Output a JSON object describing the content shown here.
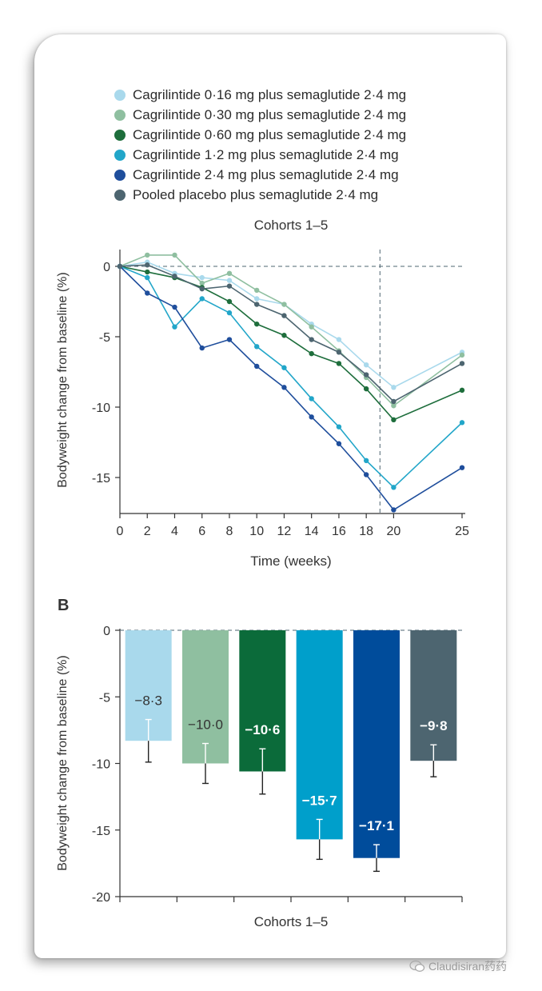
{
  "chart_data": [
    {
      "type": "line",
      "title": "Cohorts 1–5",
      "xlabel": "Time (weeks)",
      "ylabel": "Bodyweight change from baseline (%)",
      "x": [
        0,
        2,
        4,
        6,
        8,
        10,
        12,
        14,
        16,
        18,
        20,
        25
      ],
      "x_ticks": [
        "0",
        "2",
        "4",
        "6",
        "8",
        "10",
        "12",
        "14",
        "16",
        "18",
        "20",
        "25"
      ],
      "y_ticks": [
        "0",
        "-5",
        "-10",
        "-15"
      ],
      "ylim": [
        -17.5,
        1.3
      ],
      "reference_lines": {
        "y": 0,
        "x": 19
      },
      "legend_position": "top",
      "series": [
        {
          "name": "Cagrilintide 0·16 mg plus semaglutide 2·4 mg",
          "color": "#a9d9ec",
          "values": [
            0,
            0.3,
            -0.5,
            -0.8,
            -1.0,
            -2.3,
            -2.7,
            -4.1,
            -5.2,
            -7.0,
            -8.6,
            -6.1
          ]
        },
        {
          "name": "Cagrilintide 0·30 mg plus semaglutide 2·4 mg",
          "color": "#8fbfa0",
          "values": [
            0,
            0.8,
            0.8,
            -1.2,
            -0.5,
            -1.7,
            -2.7,
            -4.3,
            -6.0,
            -7.9,
            -9.9,
            -6.3
          ]
        },
        {
          "name": "Cagrilintide 0·60 mg plus semaglutide 2·4 mg",
          "color": "#1e6e3c",
          "values": [
            0,
            -0.4,
            -0.8,
            -1.5,
            -2.5,
            -4.1,
            -4.9,
            -6.2,
            -6.9,
            -8.7,
            -10.9,
            -8.8
          ]
        },
        {
          "name": "Cagrilintide 1·2 mg plus semaglutide 2·4 mg",
          "color": "#22a6c9",
          "values": [
            0,
            -0.8,
            -4.3,
            -2.3,
            -3.3,
            -5.7,
            -7.2,
            -9.4,
            -11.4,
            -13.8,
            -15.7,
            -11.1
          ]
        },
        {
          "name": "Cagrilintide 2·4 mg plus semaglutide 2·4 mg",
          "color": "#1f4e9c",
          "values": [
            0,
            -1.9,
            -2.9,
            -5.8,
            -5.2,
            -7.1,
            -8.6,
            -10.7,
            -12.6,
            -14.8,
            -17.3,
            -14.3
          ]
        },
        {
          "name": "Pooled placebo plus semaglutide 2·4 mg",
          "color": "#4d6570",
          "values": [
            0,
            0.1,
            -0.7,
            -1.6,
            -1.4,
            -2.7,
            -3.5,
            -5.2,
            -6.1,
            -7.7,
            -9.6,
            -6.9
          ]
        }
      ]
    },
    {
      "type": "bar",
      "panel_label": "B",
      "xlabel": "Cohorts 1–5",
      "ylabel": "Bodyweight change from baseline (%)",
      "y_ticks": [
        "0",
        "-5",
        "-10",
        "-15",
        "-20"
      ],
      "ylim": [
        -20,
        0
      ],
      "values": [
        -8.3,
        -10.0,
        -10.6,
        -15.7,
        -17.1,
        -9.8
      ],
      "value_labels": [
        "−8·3",
        "−10·0",
        "−10·6",
        "−15·7",
        "−17·1",
        "−9·8"
      ],
      "errors": [
        1.6,
        1.5,
        1.7,
        1.5,
        1.0,
        1.2
      ],
      "colors": [
        "#a9d9ec",
        "#8fbfa0",
        "#0b6b3a",
        "#009fcb",
        "#004c9b",
        "#4d6570"
      ],
      "label_colors": [
        "#333333",
        "#333333",
        "#ffffff",
        "#ffffff",
        "#ffffff",
        "#ffffff"
      ]
    }
  ],
  "watermark": "Claudisiran药药"
}
